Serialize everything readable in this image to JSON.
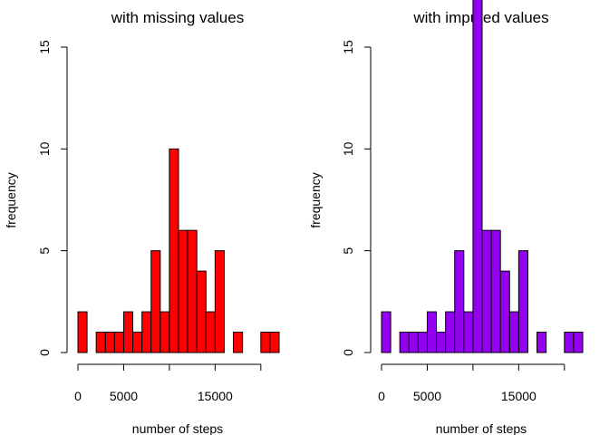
{
  "chart_data": [
    {
      "type": "bar",
      "title": "with missing values",
      "xlabel": "number of steps",
      "ylabel": "frequency",
      "fill": "#ff0000",
      "bin_width": 1000,
      "bin_start": 0,
      "values": [
        2,
        0,
        1,
        1,
        1,
        2,
        1,
        2,
        5,
        2,
        10,
        6,
        6,
        4,
        2,
        5,
        0,
        1,
        0,
        0,
        1,
        1
      ],
      "xlim": [
        0,
        22000
      ],
      "ylim": [
        0,
        15
      ],
      "xticks": [
        0,
        5000,
        10000,
        15000,
        20000
      ],
      "xtick_labels": [
        "0",
        "5000",
        "",
        "15000",
        ""
      ],
      "yticks": [
        0,
        5,
        10,
        15
      ],
      "ytick_labels": [
        "0",
        "5",
        "10",
        "15"
      ],
      "grid": false
    },
    {
      "type": "bar",
      "title": "with imputed values",
      "xlabel": "number of steps",
      "ylabel": "frequency",
      "fill": "#9400f0",
      "bin_width": 1000,
      "bin_start": 0,
      "values": [
        2,
        0,
        1,
        1,
        1,
        2,
        1,
        2,
        5,
        2,
        18,
        6,
        6,
        4,
        2,
        5,
        0,
        1,
        0,
        0,
        1,
        1
      ],
      "xlim": [
        0,
        22000
      ],
      "ylim": [
        0,
        15
      ],
      "xticks": [
        0,
        5000,
        10000,
        15000,
        20000
      ],
      "xtick_labels": [
        "0",
        "5000",
        "",
        "15000",
        ""
      ],
      "yticks": [
        0,
        5,
        10,
        15
      ],
      "ytick_labels": [
        "0",
        "5",
        "10",
        "15"
      ],
      "grid": false
    }
  ]
}
